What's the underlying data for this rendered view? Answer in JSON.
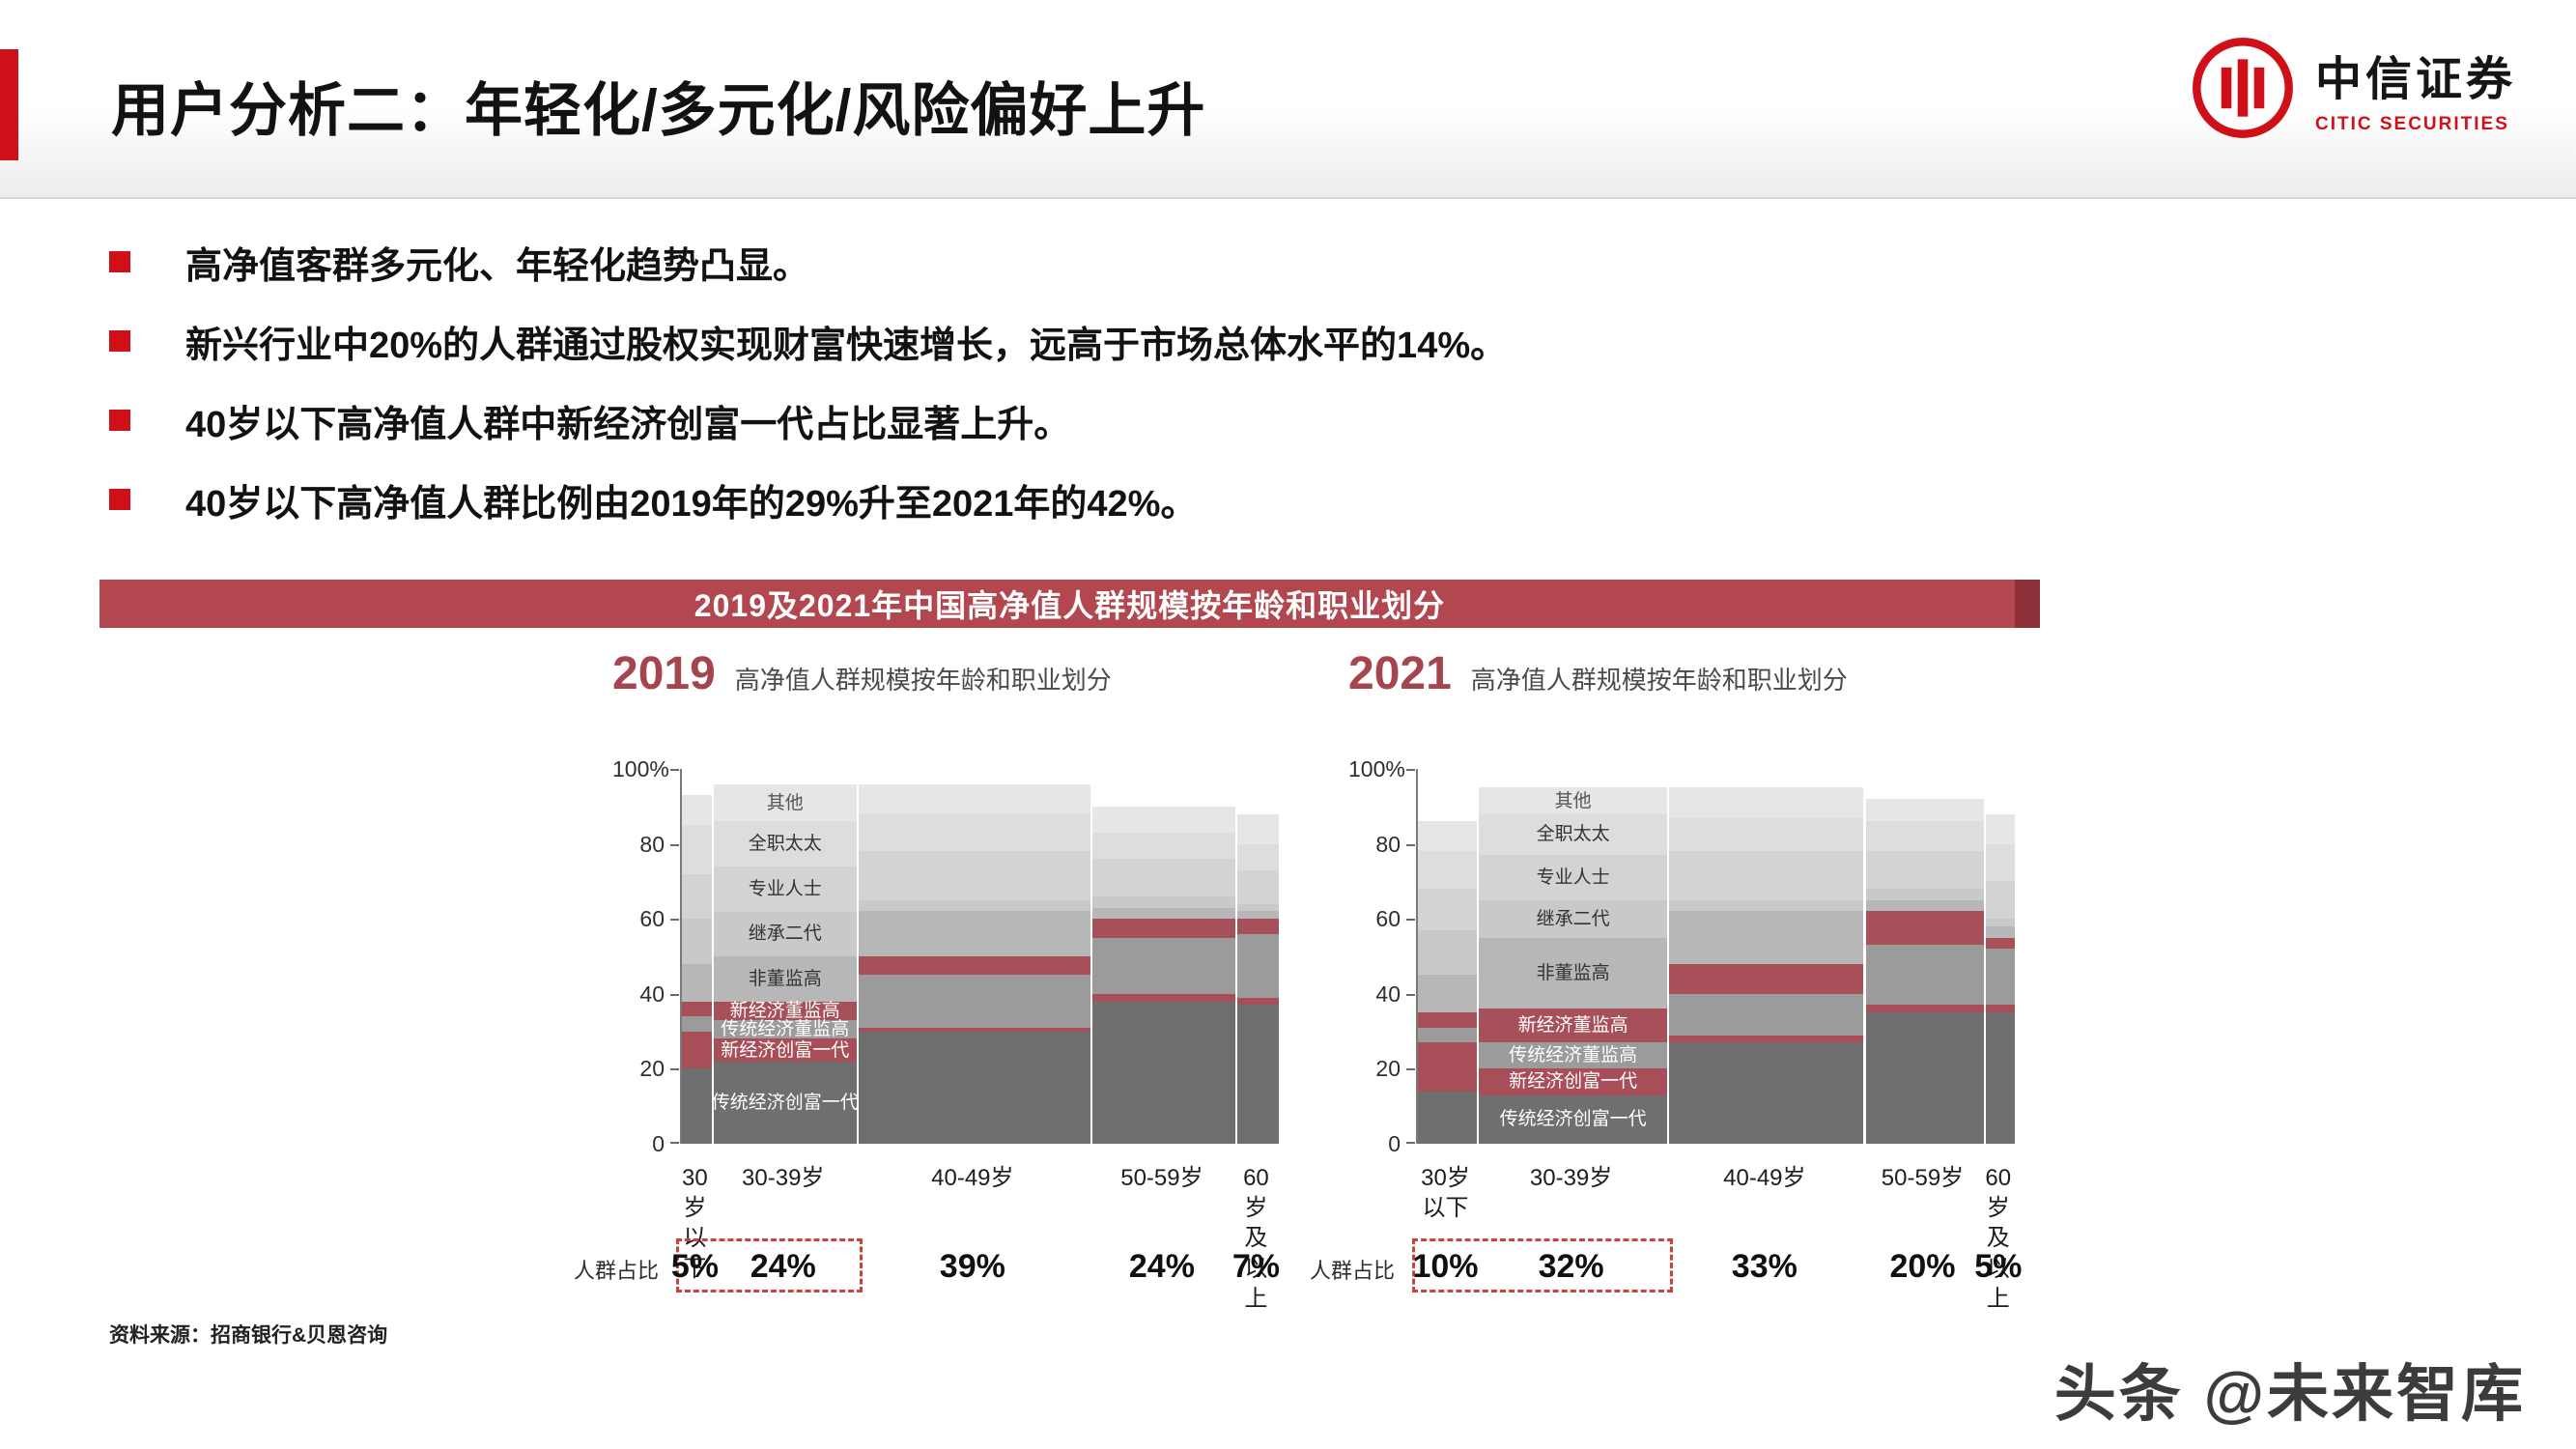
{
  "page": {
    "title": "用户分析二：年轻化/多元化/风险偏好上升",
    "logo": {
      "cn": "中信证券",
      "en": "CITIC SECURITIES"
    },
    "bullets": [
      "高净值客群多元化、年轻化趋势凸显。",
      "新兴行业中20%的人群通过股权实现财富快速增长，远高于市场总体水平的14%。",
      "40岁以下高净值人群中新经济创富一代占比显著上升。",
      "40岁以下高净值人群比例由2019年的29%升至2021年的42%。"
    ],
    "banner": "2019及2021年中国高净值人群规模按年龄和职业划分",
    "source": "资料来源：招商银行&贝恩咨询",
    "watermark": "头条 @未来智库"
  },
  "colors": {
    "accent_red": "#cf1019",
    "banner_bg": "#b2474f",
    "banner_cap": "#8d3038",
    "year_color": "#a5454e",
    "dash_box": "#c8453c"
  },
  "categories": [
    {
      "name": "传统经济创富一代",
      "color": "#6f6f6f",
      "text_color": "#ffffff"
    },
    {
      "name": "新经济创富一代",
      "color": "#a84e58",
      "text_color": "#ffffff"
    },
    {
      "name": "传统经济董监高",
      "color": "#9b9b9b",
      "text_color": "#ffffff"
    },
    {
      "name": "新经济董监高",
      "color": "#a8505a",
      "text_color": "#ffffff"
    },
    {
      "name": "非董监高",
      "color": "#b7b7b7",
      "text_color": "#333333"
    },
    {
      "name": "继承二代",
      "color": "#c9c9c9",
      "text_color": "#333333"
    },
    {
      "name": "专业人士",
      "color": "#d3d3d3",
      "text_color": "#333333"
    },
    {
      "name": "全职太太",
      "color": "#dddddd",
      "text_color": "#333333"
    },
    {
      "name": "其他",
      "color": "#e6e6e6",
      "text_color": "#555555"
    }
  ],
  "chart_data": [
    {
      "type": "mekko",
      "year": "2019",
      "subtitle": "高净值人群规模按年龄和职业划分",
      "share_label": "人群占比",
      "y_axis": {
        "ticks": [
          "100%",
          "80",
          "60",
          "40",
          "20",
          "0"
        ],
        "min": 0,
        "max": 100
      },
      "label_column": 1,
      "highlight_columns": [
        0,
        1
      ],
      "age_groups": [
        {
          "label": "30岁\n以下",
          "share": "5%",
          "width": 5
        },
        {
          "label": "30-39岁",
          "share": "24%",
          "width": 24
        },
        {
          "label": "40-49岁",
          "share": "39%",
          "width": 39
        },
        {
          "label": "50-59岁",
          "share": "24%",
          "width": 24
        },
        {
          "label": "60岁\n及以上",
          "share": "7%",
          "width": 7
        }
      ],
      "columns": [
        [
          20,
          10,
          4,
          4,
          10,
          12,
          12,
          13,
          8
        ],
        [
          22,
          6,
          5,
          5,
          12,
          12,
          12,
          12,
          10
        ],
        [
          30,
          1,
          14,
          5,
          12,
          3,
          13,
          10,
          8
        ],
        [
          38,
          2,
          15,
          5,
          3,
          3,
          10,
          7,
          7
        ],
        [
          37,
          2,
          17,
          4,
          2,
          2,
          9,
          7,
          8
        ]
      ]
    },
    {
      "type": "mekko",
      "year": "2021",
      "subtitle": "高净值人群规模按年龄和职业划分",
      "share_label": "人群占比",
      "y_axis": {
        "ticks": [
          "100%",
          "80",
          "60",
          "40",
          "20",
          "0"
        ],
        "min": 0,
        "max": 100
      },
      "label_column": 1,
      "highlight_columns": [
        0,
        1
      ],
      "age_groups": [
        {
          "label": "30岁\n以下",
          "share": "10%",
          "width": 10
        },
        {
          "label": "30-39岁",
          "share": "32%",
          "width": 32
        },
        {
          "label": "40-49岁",
          "share": "33%",
          "width": 33
        },
        {
          "label": "50-59岁",
          "share": "20%",
          "width": 20
        },
        {
          "label": "60岁\n及以上",
          "share": "5%",
          "width": 5
        }
      ],
      "columns": [
        [
          14,
          13,
          4,
          4,
          10,
          12,
          11,
          10,
          8
        ],
        [
          13,
          7,
          7,
          9,
          19,
          10,
          12,
          11,
          7
        ],
        [
          27,
          2,
          11,
          8,
          14,
          3,
          13,
          9,
          8
        ],
        [
          35,
          2,
          16,
          9,
          3,
          3,
          10,
          8,
          6
        ],
        [
          35,
          2,
          15,
          3,
          3,
          2,
          10,
          10,
          8
        ]
      ]
    }
  ]
}
